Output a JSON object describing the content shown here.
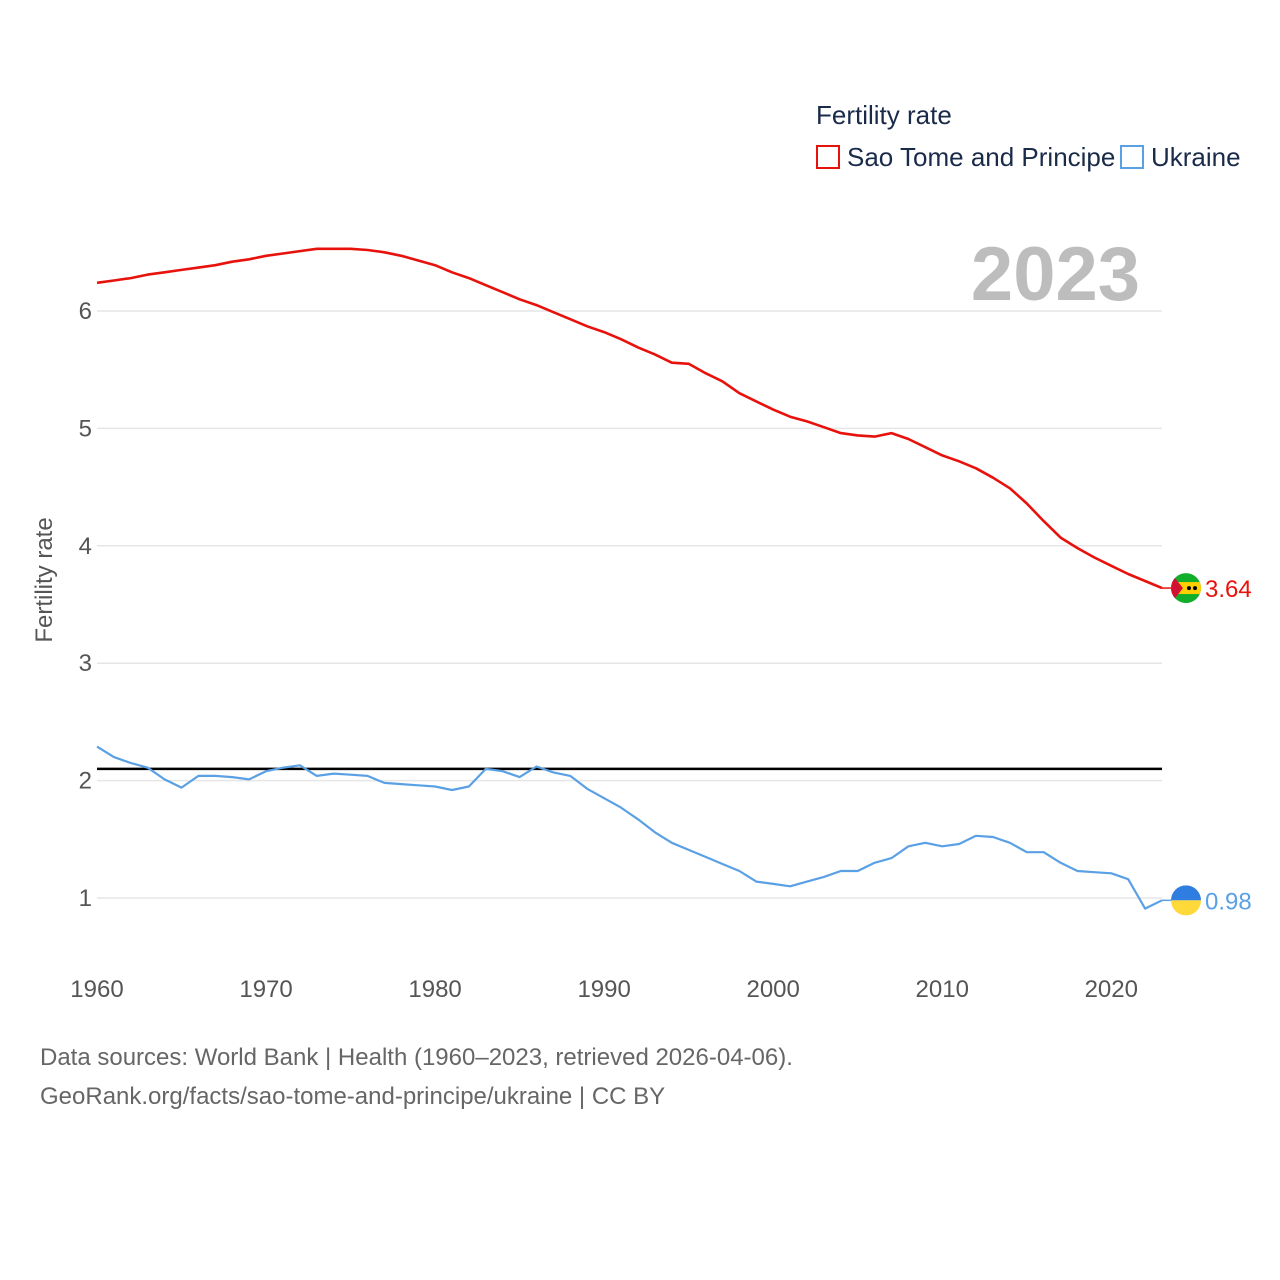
{
  "chart_data": {
    "type": "line",
    "title": "Fertility rate",
    "year_label": "2023",
    "ylabel": "Fertility rate",
    "xlabel": "",
    "xlim": [
      1960,
      2023
    ],
    "ylim": [
      0.5,
      6.9
    ],
    "x_ticks": [
      1960,
      1970,
      1980,
      1990,
      2000,
      2010,
      2020
    ],
    "y_ticks": [
      1,
      2,
      3,
      4,
      5,
      6
    ],
    "reference_line": {
      "value": 2.1,
      "color": "#000000"
    },
    "x": [
      1960,
      1961,
      1962,
      1963,
      1964,
      1965,
      1966,
      1967,
      1968,
      1969,
      1970,
      1971,
      1972,
      1973,
      1974,
      1975,
      1976,
      1977,
      1978,
      1979,
      1980,
      1981,
      1982,
      1983,
      1984,
      1985,
      1986,
      1987,
      1988,
      1989,
      1990,
      1991,
      1992,
      1993,
      1994,
      1995,
      1996,
      1997,
      1998,
      1999,
      2000,
      2001,
      2002,
      2003,
      2004,
      2005,
      2006,
      2007,
      2008,
      2009,
      2010,
      2011,
      2012,
      2013,
      2014,
      2015,
      2016,
      2017,
      2018,
      2019,
      2020,
      2021,
      2022,
      2023
    ],
    "series": [
      {
        "name": "Sao Tome and Principe",
        "color": "#e8120c",
        "end_label": "3.64",
        "values": [
          6.24,
          6.26,
          6.28,
          6.31,
          6.33,
          6.35,
          6.37,
          6.39,
          6.42,
          6.44,
          6.47,
          6.49,
          6.51,
          6.53,
          6.53,
          6.53,
          6.52,
          6.5,
          6.47,
          6.43,
          6.39,
          6.33,
          6.28,
          6.22,
          6.16,
          6.1,
          6.05,
          5.99,
          5.93,
          5.87,
          5.82,
          5.76,
          5.69,
          5.63,
          5.56,
          5.55,
          5.47,
          5.4,
          5.3,
          5.23,
          5.16,
          5.1,
          5.06,
          5.01,
          4.96,
          4.94,
          4.93,
          4.96,
          4.91,
          4.84,
          4.77,
          4.72,
          4.66,
          4.58,
          4.49,
          4.36,
          4.21,
          4.07,
          3.98,
          3.9,
          3.83,
          3.76,
          3.7,
          3.64
        ]
      },
      {
        "name": "Ukraine",
        "color": "#5aa0e4",
        "end_label": "0.98",
        "values": [
          2.29,
          2.2,
          2.15,
          2.11,
          2.01,
          1.94,
          2.04,
          2.04,
          2.03,
          2.01,
          2.08,
          2.11,
          2.13,
          2.04,
          2.06,
          2.05,
          2.04,
          1.98,
          1.97,
          1.96,
          1.95,
          1.92,
          1.95,
          2.1,
          2.08,
          2.03,
          2.12,
          2.07,
          2.04,
          1.93,
          1.85,
          1.77,
          1.67,
          1.56,
          1.47,
          1.41,
          1.35,
          1.29,
          1.23,
          1.14,
          1.12,
          1.1,
          1.14,
          1.18,
          1.23,
          1.23,
          1.3,
          1.34,
          1.44,
          1.47,
          1.44,
          1.46,
          1.53,
          1.52,
          1.47,
          1.39,
          1.39,
          1.3,
          1.23,
          1.22,
          1.21,
          1.16,
          0.91,
          0.98
        ]
      }
    ]
  },
  "footer": {
    "sources": "Data sources: World Bank | Health (1960–2023, retrieved 2026-04-06).",
    "attribution": "GeoRank.org/facts/sao-tome-and-principe/ukraine | CC BY"
  }
}
